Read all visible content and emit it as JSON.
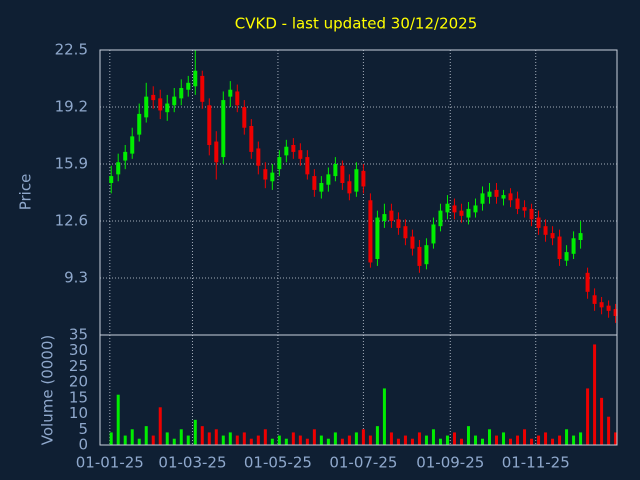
{
  "chart_data": {
    "type": "candlestick",
    "title": "CVKD - last updated 30/12/2025",
    "ylabel": "Price",
    "volume_label": "Volume (0000)",
    "background": "#0f1f33",
    "up_color": "#00ee00",
    "down_color": "#ee0000",
    "grid": true,
    "xlim": [
      "2024-12-25",
      "2025-12-29"
    ],
    "xticks": [
      {
        "value": "2025-01-01",
        "label": "01-01-25"
      },
      {
        "value": "2025-03-01",
        "label": "01-03-25"
      },
      {
        "value": "2025-05-01",
        "label": "01-05-25"
      },
      {
        "value": "2025-07-01",
        "label": "01-07-25"
      },
      {
        "value": "2025-09-01",
        "label": "01-09-25"
      },
      {
        "value": "2025-11-01",
        "label": "01-11-25"
      }
    ],
    "ylim": [
      6.0,
      22.5
    ],
    "yticks": [
      9.3,
      12.6,
      15.9,
      19.2,
      22.5
    ],
    "volume_ylim": [
      0,
      35
    ],
    "volume_yticks": [
      0,
      5,
      10,
      15,
      20,
      25,
      30,
      35
    ],
    "x": [
      "2025-01-02",
      "2025-01-07",
      "2025-01-12",
      "2025-01-17",
      "2025-01-22",
      "2025-01-27",
      "2025-02-01",
      "2025-02-06",
      "2025-02-11",
      "2025-02-16",
      "2025-02-21",
      "2025-02-26",
      "2025-03-03",
      "2025-03-08",
      "2025-03-13",
      "2025-03-18",
      "2025-03-23",
      "2025-03-28",
      "2025-04-02",
      "2025-04-07",
      "2025-04-12",
      "2025-04-17",
      "2025-04-22",
      "2025-04-27",
      "2025-05-02",
      "2025-05-07",
      "2025-05-12",
      "2025-05-17",
      "2025-05-22",
      "2025-05-27",
      "2025-06-01",
      "2025-06-06",
      "2025-06-11",
      "2025-06-16",
      "2025-06-21",
      "2025-06-26",
      "2025-07-01",
      "2025-07-06",
      "2025-07-11",
      "2025-07-16",
      "2025-07-21",
      "2025-07-26",
      "2025-07-31",
      "2025-08-05",
      "2025-08-10",
      "2025-08-15",
      "2025-08-20",
      "2025-08-25",
      "2025-08-30",
      "2025-09-04",
      "2025-09-09",
      "2025-09-14",
      "2025-09-19",
      "2025-09-24",
      "2025-09-29",
      "2025-10-04",
      "2025-10-09",
      "2025-10-14",
      "2025-10-19",
      "2025-10-24",
      "2025-10-29",
      "2025-11-03",
      "2025-11-08",
      "2025-11-13",
      "2025-11-18",
      "2025-11-23",
      "2025-11-28",
      "2025-12-03",
      "2025-12-08",
      "2025-12-13",
      "2025-12-18",
      "2025-12-23",
      "2025-12-28"
    ],
    "open": [
      14.8,
      15.3,
      16.1,
      16.5,
      17.6,
      18.6,
      19.9,
      19.7,
      18.9,
      19.3,
      19.7,
      20.2,
      20.4,
      21.0,
      19.3,
      17.2,
      16.3,
      19.8,
      20.1,
      19.2,
      18.1,
      16.8,
      15.6,
      14.9,
      15.6,
      16.4,
      17.0,
      16.7,
      16.3,
      15.2,
      14.3,
      14.7,
      15.2,
      15.8,
      14.9,
      14.3,
      15.5,
      13.8,
      10.4,
      12.6,
      13.2,
      12.7,
      12.3,
      11.7,
      11.1,
      10.1,
      11.3,
      12.3,
      13.1,
      13.5,
      13.2,
      12.8,
      13.1,
      13.6,
      14.0,
      14.4,
      13.9,
      14.2,
      13.9,
      13.4,
      13.3,
      12.8,
      12.3,
      11.9,
      11.7,
      10.3,
      10.7,
      11.5,
      9.6,
      8.3,
      7.9,
      7.7,
      7.5
    ],
    "high": [
      15.8,
      16.5,
      17.0,
      18.0,
      19.4,
      20.6,
      20.4,
      20.2,
      19.9,
      20.3,
      20.8,
      21.0,
      22.5,
      21.3,
      19.7,
      17.8,
      20.1,
      20.7,
      20.5,
      19.6,
      18.5,
      17.2,
      16.0,
      15.9,
      16.7,
      17.3,
      17.4,
      17.1,
      16.7,
      15.6,
      15.2,
      15.7,
      16.3,
      16.1,
      15.3,
      16.0,
      15.9,
      14.2,
      13.2,
      13.6,
      13.6,
      13.1,
      12.7,
      12.1,
      11.5,
      11.6,
      12.8,
      13.6,
      14.1,
      13.9,
      13.6,
      13.7,
      13.9,
      14.6,
      14.8,
      14.8,
      14.4,
      14.5,
      14.3,
      13.8,
      13.6,
      13.2,
      12.7,
      12.3,
      12.1,
      11.2,
      12.0,
      12.6,
      9.9,
      8.7,
      8.2,
      8.0,
      7.8
    ],
    "low": [
      14.2,
      14.9,
      15.6,
      16.2,
      17.2,
      18.3,
      19.1,
      18.5,
      18.4,
      18.9,
      19.3,
      19.8,
      19.9,
      19.1,
      16.4,
      15.0,
      15.9,
      19.2,
      18.9,
      17.6,
      16.2,
      15.3,
      14.5,
      14.4,
      15.2,
      16.0,
      16.2,
      15.8,
      15.0,
      14.0,
      13.9,
      14.3,
      14.9,
      14.4,
      13.8,
      14.0,
      14.2,
      9.9,
      10.0,
      12.2,
      12.2,
      11.8,
      11.2,
      10.6,
      9.6,
      9.8,
      11.0,
      12.0,
      12.7,
      12.7,
      12.5,
      12.4,
      12.8,
      13.2,
      13.6,
      13.6,
      13.5,
      13.4,
      13.0,
      12.8,
      12.3,
      11.8,
      11.4,
      11.2,
      10.0,
      10.0,
      10.4,
      11.0,
      8.1,
      7.4,
      7.2,
      7.0,
      6.7
    ],
    "close": [
      15.2,
      16.0,
      16.6,
      17.5,
      18.8,
      19.8,
      19.6,
      19.0,
      19.4,
      19.8,
      20.3,
      20.6,
      21.3,
      19.5,
      17.0,
      16.0,
      19.6,
      20.2,
      19.3,
      18.0,
      16.6,
      15.8,
      15.0,
      15.4,
      16.3,
      16.9,
      16.6,
      16.2,
      15.3,
      14.4,
      14.8,
      15.3,
      15.9,
      14.8,
      14.2,
      15.6,
      14.6,
      10.2,
      12.8,
      13.0,
      12.6,
      12.2,
      11.6,
      11.0,
      10.0,
      11.2,
      12.4,
      13.2,
      13.6,
      13.1,
      12.9,
      13.3,
      13.5,
      14.2,
      14.3,
      14.0,
      14.1,
      13.8,
      13.3,
      13.2,
      12.7,
      12.2,
      11.8,
      11.6,
      10.4,
      10.8,
      11.6,
      11.9,
      8.5,
      7.8,
      7.6,
      7.4,
      7.1
    ],
    "volume": [
      4,
      16,
      3,
      5,
      2,
      6,
      3,
      12,
      4,
      2,
      5,
      3,
      8,
      6,
      4,
      5,
      3,
      4,
      3,
      4,
      2,
      3,
      5,
      2,
      3,
      2,
      4,
      3,
      2,
      5,
      3,
      2,
      4,
      2,
      3,
      4,
      5,
      3,
      6,
      18,
      4,
      2,
      3,
      2,
      4,
      3,
      5,
      2,
      3,
      4,
      2,
      6,
      3,
      2,
      5,
      3,
      4,
      2,
      3,
      5,
      2,
      3,
      4,
      2,
      3,
      5,
      3,
      4,
      18,
      32,
      15,
      9,
      4
    ]
  }
}
